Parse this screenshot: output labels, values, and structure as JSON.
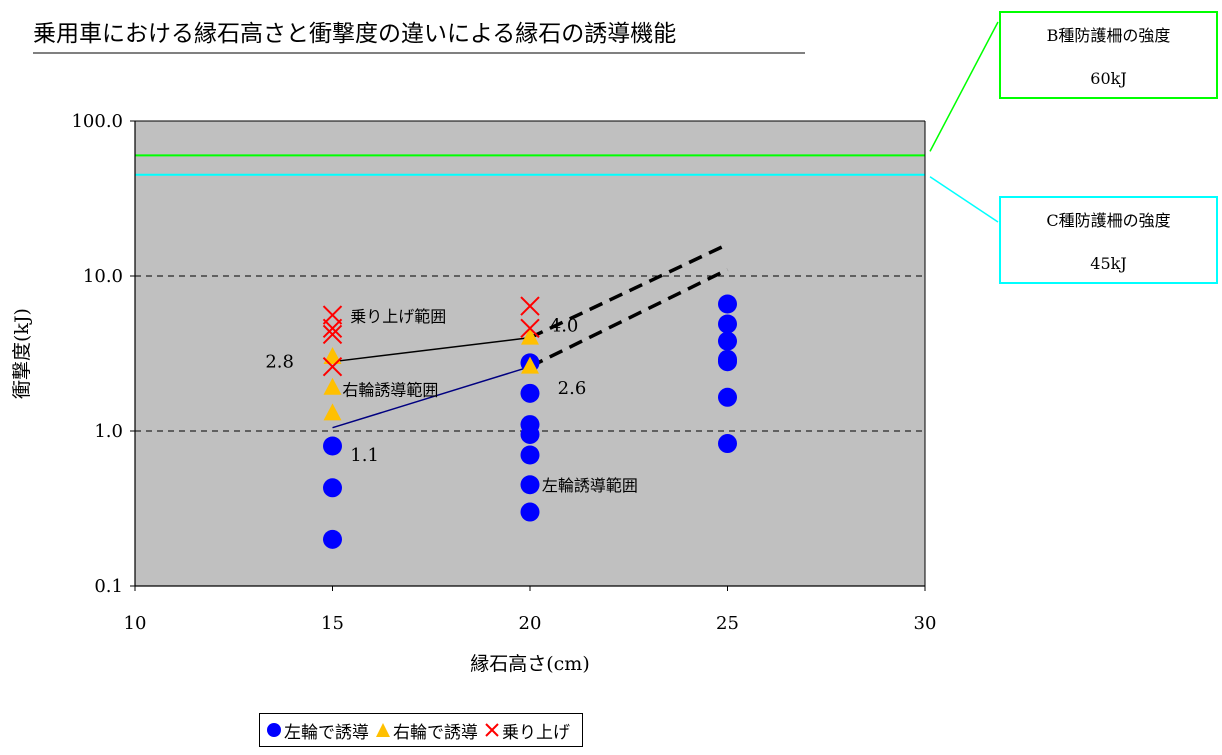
{
  "chart_data": {
    "type": "scatter",
    "title": "乗用車における縁石高さと衝撃度の違いによる縁石の誘導機能",
    "xlabel": "縁石高さ(cm)",
    "ylabel": "衝撃度(kJ)",
    "xlim": [
      10,
      30
    ],
    "ylim": [
      0.1,
      100
    ],
    "yscale": "log",
    "x_ticks": [
      10,
      15,
      20,
      25,
      30
    ],
    "y_ticks": [
      0.1,
      1.0,
      10.0,
      100.0
    ],
    "x_tick_labels": [
      "10",
      "15",
      "20",
      "25",
      "30"
    ],
    "y_tick_labels": [
      "0.1",
      "1.0",
      "10.0",
      "100.0"
    ],
    "grid": "dashed horizontal at 1.0 and 10.0",
    "legend_position": "bottom",
    "colors": {
      "plot_bg": "#c0c0c0",
      "left": "#0000ff",
      "right": "#ffc000",
      "rollover": "#ff0000",
      "b_line": "#00ff00",
      "c_line": "#00ffff",
      "trend_low": "#000080",
      "trend_high": "#000000"
    },
    "series": [
      {
        "name": "左輪で誘導",
        "marker": "circle",
        "color": "#0000ff",
        "points": [
          [
            15,
            0.2
          ],
          [
            15,
            0.43
          ],
          [
            15,
            0.8
          ],
          [
            20,
            0.3
          ],
          [
            20,
            0.45
          ],
          [
            20,
            0.7
          ],
          [
            20,
            0.95
          ],
          [
            20,
            1.1
          ],
          [
            20,
            1.75
          ],
          [
            20,
            2.75
          ],
          [
            25,
            0.83
          ],
          [
            25,
            1.65
          ],
          [
            25,
            2.8
          ],
          [
            25,
            2.9
          ],
          [
            25,
            3.8
          ],
          [
            25,
            4.9
          ],
          [
            25,
            6.6
          ]
        ]
      },
      {
        "name": "右輪で誘導",
        "marker": "triangle",
        "color": "#ffc000",
        "points": [
          [
            15,
            1.3
          ],
          [
            15,
            1.9
          ],
          [
            15,
            3.0
          ],
          [
            20,
            2.6
          ],
          [
            20,
            4.0
          ]
        ]
      },
      {
        "name": "乗り上げ",
        "marker": "x",
        "color": "#ff0000",
        "points": [
          [
            15,
            2.6
          ],
          [
            15,
            4.2
          ],
          [
            15,
            4.6
          ],
          [
            15,
            5.6
          ],
          [
            20,
            4.6
          ],
          [
            20,
            6.4
          ]
        ]
      }
    ],
    "reference_lines": [
      {
        "y": 60,
        "color": "#00ff00",
        "label_title": "B種防護柵の強度",
        "label_value": "60kJ"
      },
      {
        "y": 45,
        "color": "#00ffff",
        "label_title": "C種防護柵の強度",
        "label_value": "45kJ"
      }
    ],
    "trend_lines": [
      {
        "points": [
          [
            15,
            1.05
          ],
          [
            20,
            2.6
          ]
        ],
        "extension": [
          [
            20,
            2.6
          ],
          [
            25,
            11
          ]
        ],
        "color": "#000080"
      },
      {
        "points": [
          [
            15,
            2.8
          ],
          [
            20,
            4.0
          ]
        ],
        "extension": [
          [
            20,
            4.0
          ],
          [
            25,
            16
          ]
        ],
        "color": "#000000"
      }
    ],
    "annotations": [
      {
        "text": "乗り上げ範囲",
        "x": 15.45,
        "y": 5.5
      },
      {
        "text": "右輪誘導範囲",
        "x": 15.25,
        "y": 1.85
      },
      {
        "text": "左輪誘導範囲",
        "x": 20.3,
        "y": 0.45
      },
      {
        "text": "2.8",
        "x": 13.3,
        "y": 2.8
      },
      {
        "text": "4.0",
        "x": 20.5,
        "y": 4.8
      },
      {
        "text": "2.6",
        "x": 20.7,
        "y": 1.9
      },
      {
        "text": "1.1",
        "x": 15.45,
        "y": 0.7
      }
    ]
  }
}
